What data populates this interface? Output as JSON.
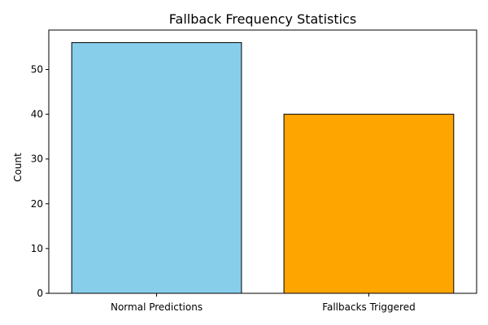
{
  "chart_data": {
    "type": "bar",
    "title": "Fallback Frequency Statistics",
    "xlabel": "",
    "ylabel": "Count",
    "categories": [
      "Normal Predictions",
      "Fallbacks Triggered"
    ],
    "values": [
      56,
      40
    ],
    "colors": [
      "#87ceeb",
      "#ffa500"
    ],
    "edge_color": "#000000",
    "ylim": [
      0,
      58.8
    ],
    "yticks": [
      0,
      10,
      20,
      30,
      40,
      50
    ],
    "grid": false
  }
}
